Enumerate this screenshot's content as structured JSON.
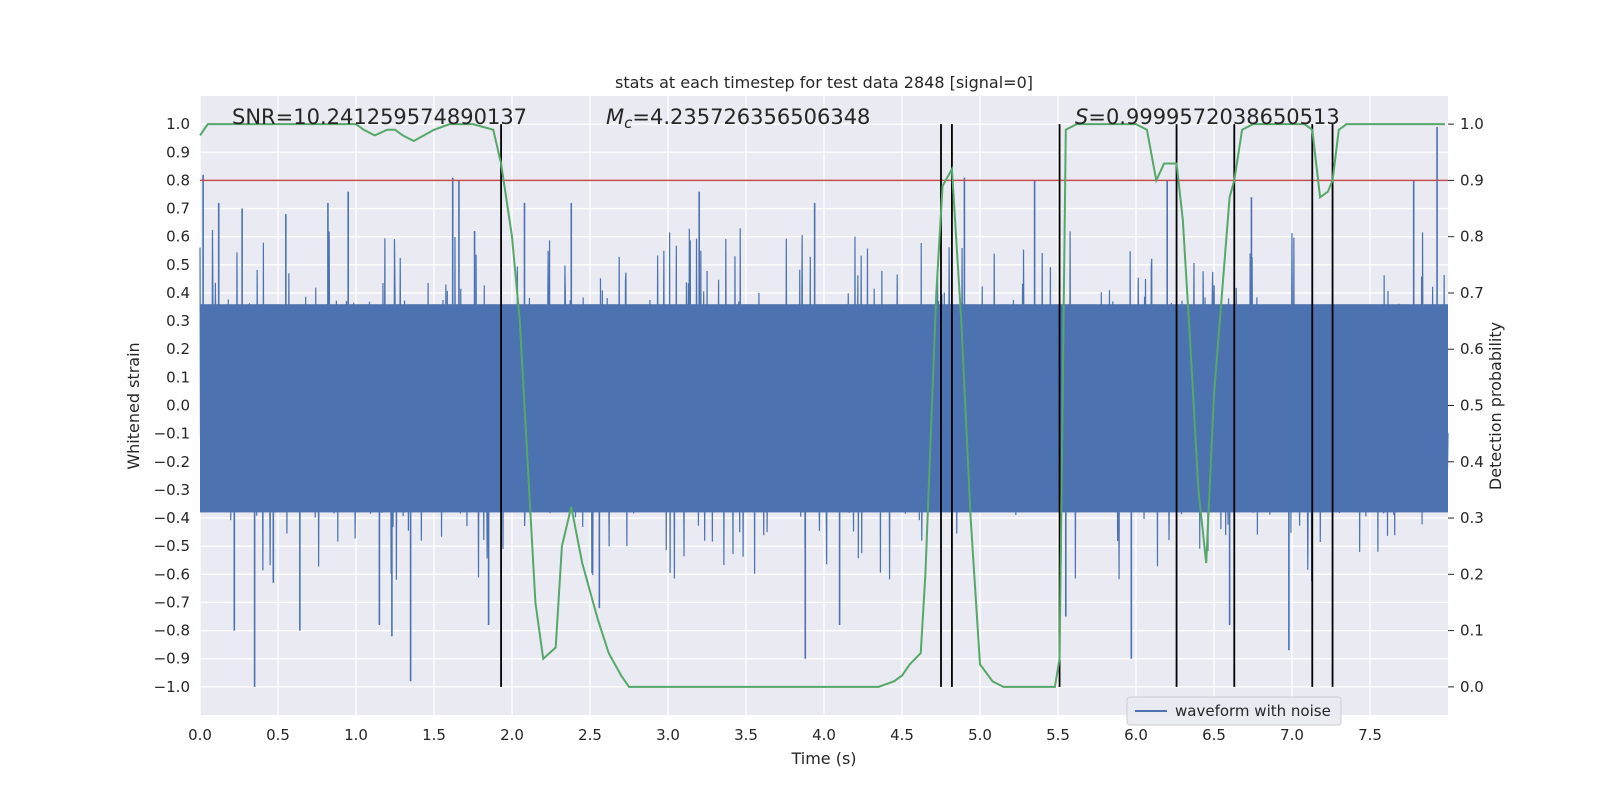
{
  "chart_data": {
    "type": "line",
    "title": "stats at each timestep for test data 2848 [signal=0]",
    "xlabel": "Time (s)",
    "ylabel": "Whitened strain",
    "ylabel_right": "Detection probability",
    "xlim": [
      0,
      8
    ],
    "ylim": [
      -1.1,
      1.1
    ],
    "ylim_right": [
      -0.05,
      1.05
    ],
    "x_ticks": [
      "0.0",
      "0.5",
      "1.0",
      "1.5",
      "2.0",
      "2.5",
      "3.0",
      "3.5",
      "4.0",
      "4.5",
      "5.0",
      "5.5",
      "6.0",
      "6.5",
      "7.0",
      "7.5"
    ],
    "y_ticks": [
      "1.0",
      "0.9",
      "0.8",
      "0.7",
      "0.6",
      "0.5",
      "0.4",
      "0.3",
      "0.2",
      "0.1",
      "0.0",
      "-0.1",
      "-0.2",
      "-0.3",
      "-0.4",
      "-0.5",
      "-0.6",
      "-0.7",
      "-0.8",
      "-0.9",
      "-1.0"
    ],
    "y_ticks_right": [
      "1.0",
      "0.9",
      "0.8",
      "0.7",
      "0.6",
      "0.5",
      "0.4",
      "0.3",
      "0.2",
      "0.1",
      "0.0"
    ],
    "grid": true,
    "legend": {
      "placement": "lower-right",
      "entries": [
        "waveform with noise"
      ]
    },
    "annotations": {
      "snr": "SNR=10.241259574890137",
      "mc_symbol": "M",
      "mc_sub": "c",
      "mc_value": "=4.235726356506348",
      "s_symbol": "S",
      "s_value": "=0.9999572038650513"
    },
    "threshold": {
      "axis": "right",
      "value": 0.9
    },
    "detection_lines_x": [
      1.93,
      4.75,
      4.82,
      5.51,
      6.26,
      6.63,
      7.13,
      7.26
    ],
    "colors": {
      "waveform": "#4c72b0",
      "probability": "#55a868",
      "threshold": "#c44e52",
      "markers": "#000000",
      "background": "#eaeaf2"
    },
    "series": [
      {
        "name": "waveform with noise",
        "axis": "left",
        "style": "dense noise, amplitude about 0.4 with spikes up to 0.8 and down to -1.0",
        "spikes": [
          [
            0.02,
            0.82
          ],
          [
            0.12,
            0.72
          ],
          [
            0.22,
            -0.8
          ],
          [
            0.27,
            0.7
          ],
          [
            0.35,
            -1.0
          ],
          [
            0.47,
            -0.63
          ],
          [
            0.55,
            0.68
          ],
          [
            0.64,
            -0.8
          ],
          [
            0.82,
            0.72
          ],
          [
            0.95,
            0.76
          ],
          [
            1.15,
            -0.78
          ],
          [
            1.23,
            -0.82
          ],
          [
            1.35,
            -0.98
          ],
          [
            1.62,
            0.81
          ],
          [
            1.66,
            0.8
          ],
          [
            1.76,
            0.62
          ],
          [
            1.85,
            -0.78
          ],
          [
            2.08,
            0.72
          ],
          [
            2.38,
            0.72
          ],
          [
            2.56,
            -0.72
          ],
          [
            3.2,
            0.76
          ],
          [
            3.88,
            -0.9
          ],
          [
            3.94,
            0.72
          ],
          [
            4.1,
            -0.78
          ],
          [
            4.9,
            0.81
          ],
          [
            5.35,
            0.8
          ],
          [
            5.55,
            -0.75
          ],
          [
            5.97,
            -0.9
          ],
          [
            6.2,
            0.8
          ],
          [
            6.6,
            -0.78
          ],
          [
            6.74,
            0.74
          ],
          [
            6.98,
            -0.87
          ],
          [
            7.13,
            0.72
          ],
          [
            7.78,
            0.8
          ],
          [
            7.93,
            0.99
          ]
        ]
      },
      {
        "name": "",
        "axis": "right",
        "x": [
          0.0,
          0.05,
          0.2,
          0.5,
          0.9,
          1.0,
          1.05,
          1.12,
          1.2,
          1.25,
          1.3,
          1.37,
          1.5,
          1.6,
          1.75,
          1.88,
          1.93,
          2.0,
          2.05,
          2.1,
          2.15,
          2.2,
          2.28,
          2.32,
          2.38,
          2.45,
          2.55,
          2.62,
          2.7,
          2.75,
          2.85,
          3.0,
          3.2,
          3.4,
          3.5,
          3.55,
          3.65,
          3.8,
          4.0,
          4.2,
          4.35,
          4.45,
          4.5,
          4.55,
          4.62,
          4.65,
          4.72,
          4.76,
          4.82,
          4.88,
          4.94,
          5.0,
          5.08,
          5.15,
          5.3,
          5.48,
          5.51,
          5.55,
          5.62,
          5.7,
          5.8,
          6.0,
          6.07,
          6.13,
          6.18,
          6.26,
          6.3,
          6.35,
          6.4,
          6.45,
          6.5,
          6.6,
          6.63,
          6.68,
          6.75,
          6.9,
          7.08,
          7.13,
          7.18,
          7.23,
          7.26,
          7.3,
          7.35,
          7.5,
          7.98
        ],
        "values": [
          0.98,
          1.0,
          1.0,
          1.0,
          1.0,
          1.0,
          0.99,
          0.98,
          0.99,
          0.99,
          0.98,
          0.97,
          0.99,
          1.0,
          1.0,
          0.99,
          0.93,
          0.8,
          0.65,
          0.4,
          0.15,
          0.05,
          0.07,
          0.25,
          0.32,
          0.22,
          0.12,
          0.06,
          0.02,
          0.0,
          0.0,
          0.0,
          0.0,
          0.0,
          0.0,
          0.0,
          0.0,
          0.0,
          0.0,
          0.0,
          0.0,
          0.01,
          0.02,
          0.04,
          0.06,
          0.2,
          0.7,
          0.89,
          0.92,
          0.65,
          0.3,
          0.04,
          0.01,
          0.0,
          0.0,
          0.0,
          0.05,
          0.99,
          1.0,
          1.0,
          1.0,
          1.0,
          0.99,
          0.9,
          0.93,
          0.93,
          0.83,
          0.6,
          0.35,
          0.22,
          0.52,
          0.87,
          0.9,
          0.99,
          1.0,
          1.0,
          1.0,
          0.99,
          0.87,
          0.88,
          0.9,
          0.99,
          1.0,
          1.0,
          1.0
        ]
      }
    ]
  }
}
